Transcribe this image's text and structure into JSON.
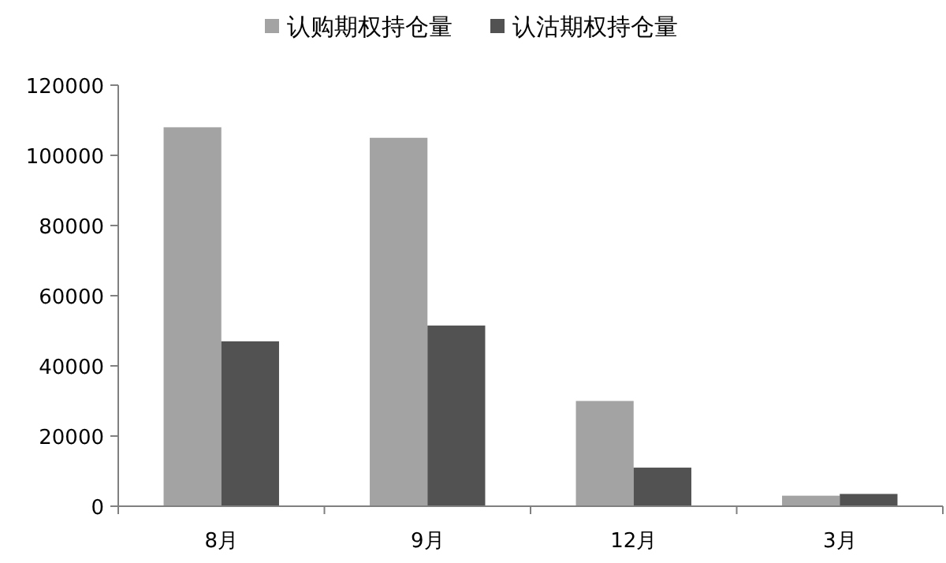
{
  "chart_data": {
    "type": "bar",
    "categories": [
      "8月",
      "9月",
      "12月",
      "3月"
    ],
    "series": [
      {
        "name": "认购期权持仓量",
        "color": "#a3a3a3",
        "values": [
          108000,
          105000,
          30000,
          3000
        ]
      },
      {
        "name": "认沽期权持仓量",
        "color": "#525252",
        "values": [
          47000,
          51500,
          11000,
          3500
        ]
      }
    ],
    "ylim": [
      0,
      120000
    ],
    "yticks": [
      0,
      20000,
      40000,
      60000,
      80000,
      100000,
      120000
    ],
    "grid": false,
    "legend": "top"
  }
}
